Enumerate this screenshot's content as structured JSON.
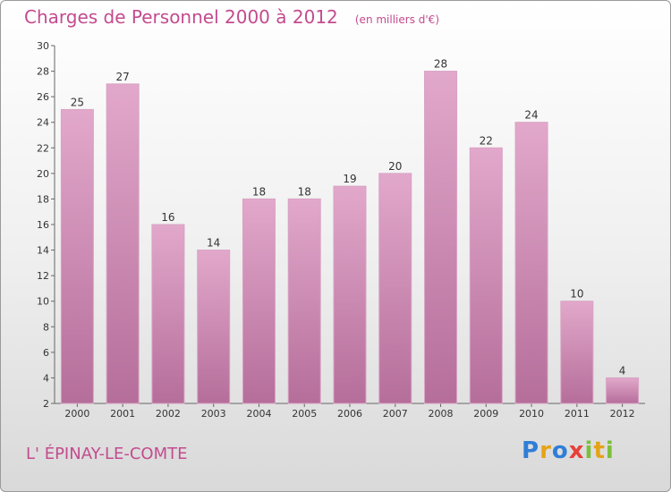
{
  "chart_data": {
    "type": "bar",
    "title": "Charges de Personnel 2000 à 2012",
    "subtitle": "(en milliers d'€)",
    "categories": [
      "2000",
      "2001",
      "2002",
      "2003",
      "2004",
      "2005",
      "2006",
      "2007",
      "2008",
      "2009",
      "2010",
      "2011",
      "2012"
    ],
    "values": [
      25,
      27,
      16,
      14,
      18,
      18,
      19,
      20,
      28,
      22,
      24,
      10,
      4
    ],
    "ylim": [
      2,
      30
    ],
    "yticks": [
      2,
      4,
      6,
      8,
      10,
      12,
      14,
      16,
      18,
      20,
      22,
      24,
      26,
      28,
      30
    ],
    "grid": false,
    "bar_color_top": "#e2a8cb",
    "bar_color_bottom": "#b56e9a"
  },
  "footer": {
    "place": "L' ÉPINAY-LE-COMTE"
  },
  "brand": {
    "letters": [
      "P",
      "r",
      "o",
      "x",
      "i",
      "t",
      "i"
    ],
    "colors": [
      "#2f7ed8",
      "#e6a317",
      "#2f7ed8",
      "#e8403a",
      "#7bbf3a",
      "#e6a317",
      "#7bbf3a"
    ]
  }
}
